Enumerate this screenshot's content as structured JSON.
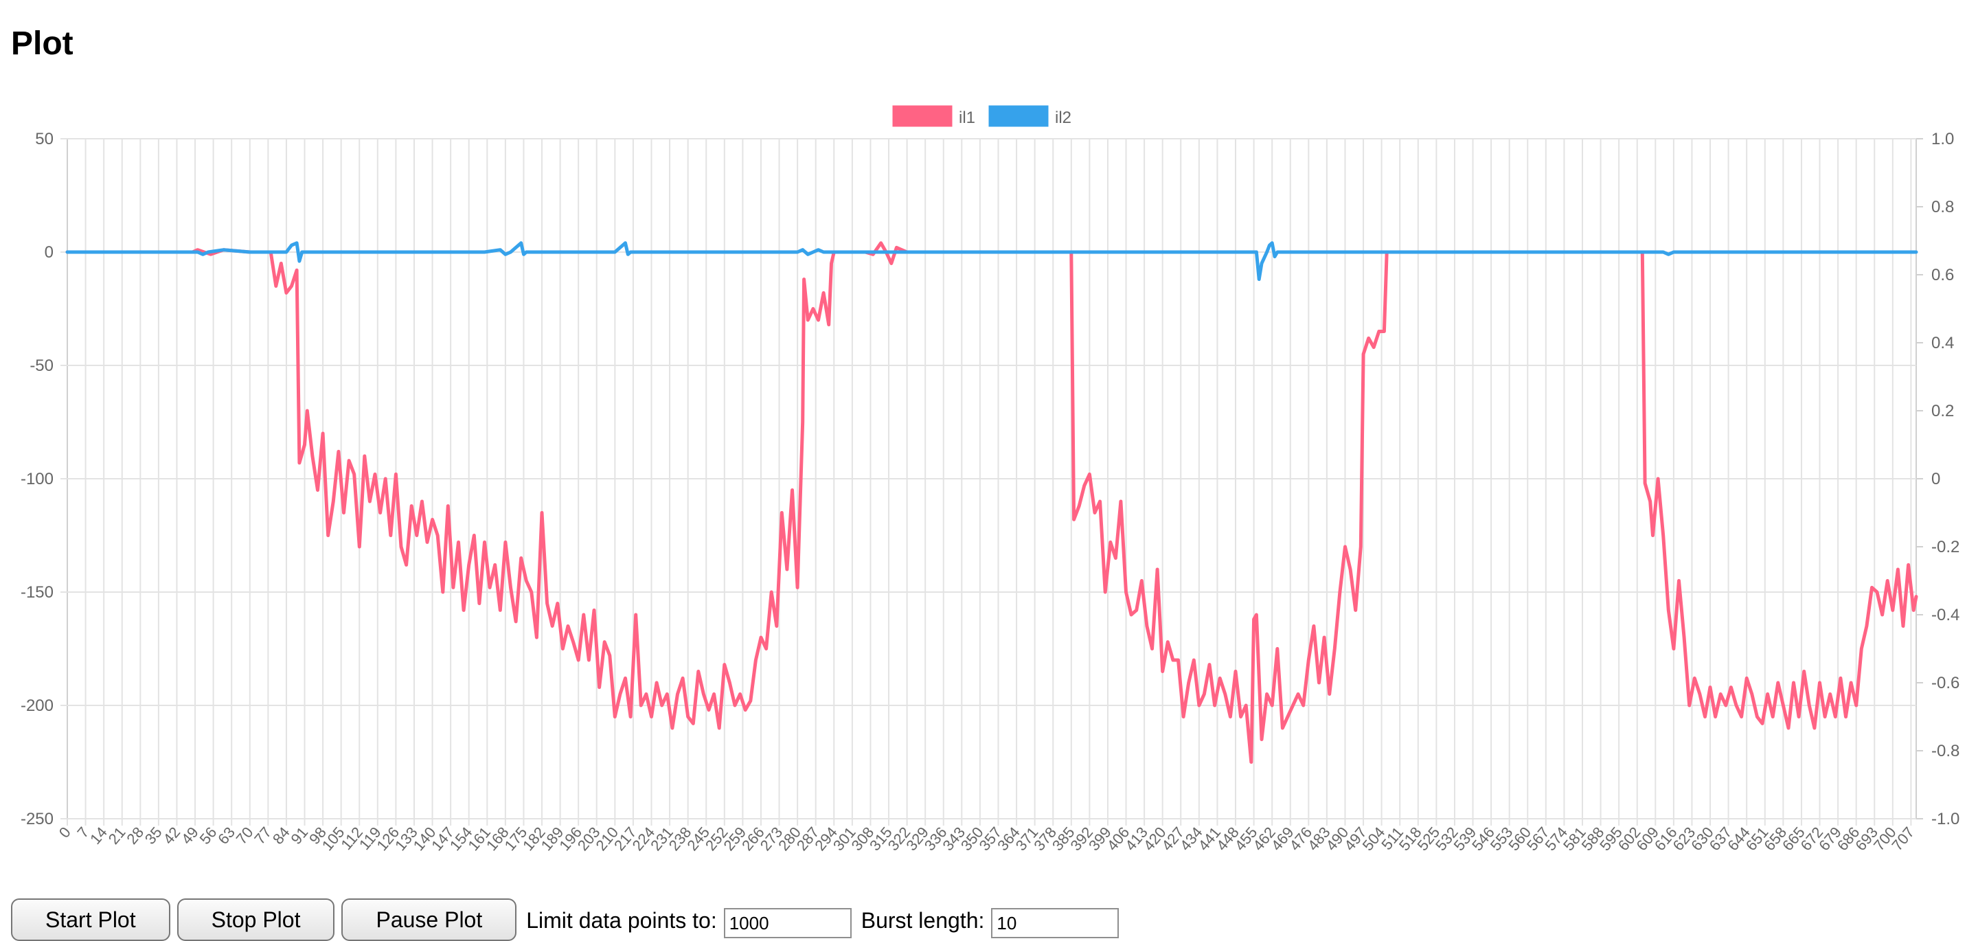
{
  "page": {
    "title": "Plot"
  },
  "controls": {
    "start_label": "Start Plot",
    "stop_label": "Stop Plot",
    "pause_label": "Pause Plot",
    "limit_label": "Limit data points to:",
    "limit_value": "1000",
    "burst_label": "Burst length:",
    "burst_value": "10"
  },
  "chart_data": {
    "type": "line",
    "x": {
      "min": 0,
      "max": 709,
      "tick_step": 7
    },
    "y_left": {
      "min": -250,
      "max": 50,
      "ticks": [
        50,
        0,
        -50,
        -100,
        -150,
        -200,
        -250
      ]
    },
    "y_right": {
      "min": -1.0,
      "max": 1.0,
      "ticks": [
        "1.0",
        "0.8",
        "0.6",
        "0.4",
        "0.2",
        "0",
        "-0.2",
        "-0.4",
        "-0.6",
        "-0.8",
        "-1.0"
      ]
    },
    "grid": true,
    "legend_position": "top-center",
    "series": [
      {
        "name": "il1",
        "color": "#ff6384",
        "points": [
          [
            0,
            0
          ],
          [
            48,
            0
          ],
          [
            50,
            1
          ],
          [
            55,
            -1
          ],
          [
            60,
            1
          ],
          [
            70,
            0
          ],
          [
            78,
            0
          ],
          [
            80,
            -15
          ],
          [
            82,
            -5
          ],
          [
            84,
            -18
          ],
          [
            86,
            -15
          ],
          [
            88,
            -8
          ],
          [
            89,
            -93
          ],
          [
            91,
            -85
          ],
          [
            92,
            -70
          ],
          [
            94,
            -90
          ],
          [
            96,
            -105
          ],
          [
            98,
            -80
          ],
          [
            100,
            -125
          ],
          [
            102,
            -110
          ],
          [
            104,
            -88
          ],
          [
            106,
            -115
          ],
          [
            108,
            -92
          ],
          [
            110,
            -98
          ],
          [
            112,
            -130
          ],
          [
            114,
            -90
          ],
          [
            116,
            -110
          ],
          [
            118,
            -98
          ],
          [
            120,
            -115
          ],
          [
            122,
            -100
          ],
          [
            124,
            -125
          ],
          [
            126,
            -98
          ],
          [
            128,
            -130
          ],
          [
            130,
            -138
          ],
          [
            132,
            -112
          ],
          [
            134,
            -125
          ],
          [
            136,
            -110
          ],
          [
            138,
            -128
          ],
          [
            140,
            -118
          ],
          [
            142,
            -125
          ],
          [
            144,
            -150
          ],
          [
            146,
            -112
          ],
          [
            148,
            -148
          ],
          [
            150,
            -128
          ],
          [
            152,
            -158
          ],
          [
            154,
            -138
          ],
          [
            156,
            -125
          ],
          [
            158,
            -155
          ],
          [
            160,
            -128
          ],
          [
            162,
            -148
          ],
          [
            164,
            -138
          ],
          [
            166,
            -158
          ],
          [
            168,
            -128
          ],
          [
            170,
            -148
          ],
          [
            172,
            -163
          ],
          [
            174,
            -135
          ],
          [
            176,
            -145
          ],
          [
            178,
            -150
          ],
          [
            180,
            -170
          ],
          [
            182,
            -115
          ],
          [
            184,
            -155
          ],
          [
            186,
            -165
          ],
          [
            188,
            -155
          ],
          [
            190,
            -175
          ],
          [
            192,
            -165
          ],
          [
            194,
            -172
          ],
          [
            196,
            -180
          ],
          [
            198,
            -160
          ],
          [
            200,
            -180
          ],
          [
            202,
            -158
          ],
          [
            204,
            -192
          ],
          [
            206,
            -172
          ],
          [
            208,
            -178
          ],
          [
            210,
            -205
          ],
          [
            212,
            -195
          ],
          [
            214,
            -188
          ],
          [
            216,
            -205
          ],
          [
            218,
            -160
          ],
          [
            220,
            -200
          ],
          [
            222,
            -195
          ],
          [
            224,
            -205
          ],
          [
            226,
            -190
          ],
          [
            228,
            -200
          ],
          [
            230,
            -195
          ],
          [
            232,
            -210
          ],
          [
            234,
            -195
          ],
          [
            236,
            -188
          ],
          [
            238,
            -205
          ],
          [
            240,
            -208
          ],
          [
            242,
            -185
          ],
          [
            244,
            -195
          ],
          [
            246,
            -202
          ],
          [
            248,
            -195
          ],
          [
            250,
            -210
          ],
          [
            252,
            -182
          ],
          [
            254,
            -190
          ],
          [
            256,
            -200
          ],
          [
            258,
            -195
          ],
          [
            260,
            -202
          ],
          [
            262,
            -198
          ],
          [
            264,
            -180
          ],
          [
            266,
            -170
          ],
          [
            268,
            -175
          ],
          [
            270,
            -150
          ],
          [
            272,
            -165
          ],
          [
            274,
            -115
          ],
          [
            276,
            -140
          ],
          [
            278,
            -105
          ],
          [
            280,
            -148
          ],
          [
            282,
            -75
          ],
          [
            282.5,
            -12
          ],
          [
            284,
            -30
          ],
          [
            286,
            -25
          ],
          [
            288,
            -30
          ],
          [
            290,
            -18
          ],
          [
            292,
            -32
          ],
          [
            293,
            -5
          ],
          [
            294,
            0
          ],
          [
            306,
            0
          ],
          [
            309,
            -1
          ],
          [
            312,
            4
          ],
          [
            314,
            0
          ],
          [
            316,
            -5
          ],
          [
            318,
            2
          ],
          [
            322,
            0
          ],
          [
            360,
            0
          ],
          [
            385,
            0
          ],
          [
            386,
            -118
          ],
          [
            388,
            -112
          ],
          [
            390,
            -103
          ],
          [
            392,
            -98
          ],
          [
            394,
            -115
          ],
          [
            396,
            -110
          ],
          [
            398,
            -150
          ],
          [
            400,
            -128
          ],
          [
            402,
            -135
          ],
          [
            404,
            -110
          ],
          [
            406,
            -150
          ],
          [
            408,
            -160
          ],
          [
            410,
            -158
          ],
          [
            412,
            -145
          ],
          [
            414,
            -165
          ],
          [
            416,
            -175
          ],
          [
            418,
            -140
          ],
          [
            420,
            -185
          ],
          [
            422,
            -172
          ],
          [
            424,
            -180
          ],
          [
            426,
            -180
          ],
          [
            428,
            -205
          ],
          [
            430,
            -190
          ],
          [
            432,
            -180
          ],
          [
            434,
            -200
          ],
          [
            436,
            -195
          ],
          [
            438,
            -182
          ],
          [
            440,
            -200
          ],
          [
            442,
            -188
          ],
          [
            444,
            -195
          ],
          [
            446,
            -205
          ],
          [
            448,
            -185
          ],
          [
            450,
            -205
          ],
          [
            452,
            -200
          ],
          [
            454,
            -225
          ],
          [
            455,
            -162
          ],
          [
            456,
            -160
          ],
          [
            458,
            -215
          ],
          [
            460,
            -195
          ],
          [
            462,
            -200
          ],
          [
            464,
            -175
          ],
          [
            466,
            -210
          ],
          [
            468,
            -205
          ],
          [
            470,
            -200
          ],
          [
            472,
            -195
          ],
          [
            474,
            -200
          ],
          [
            476,
            -180
          ],
          [
            478,
            -165
          ],
          [
            480,
            -190
          ],
          [
            482,
            -170
          ],
          [
            484,
            -195
          ],
          [
            486,
            -175
          ],
          [
            488,
            -150
          ],
          [
            490,
            -130
          ],
          [
            492,
            -140
          ],
          [
            494,
            -158
          ],
          [
            496,
            -130
          ],
          [
            497,
            -45
          ],
          [
            499,
            -38
          ],
          [
            501,
            -42
          ],
          [
            503,
            -35
          ],
          [
            505,
            -35
          ],
          [
            506,
            0
          ],
          [
            540,
            0
          ],
          [
            590,
            0
          ],
          [
            604,
            0
          ],
          [
            605,
            -102
          ],
          [
            607,
            -110
          ],
          [
            608,
            -125
          ],
          [
            610,
            -100
          ],
          [
            612,
            -125
          ],
          [
            614,
            -158
          ],
          [
            616,
            -175
          ],
          [
            618,
            -145
          ],
          [
            620,
            -170
          ],
          [
            622,
            -200
          ],
          [
            624,
            -188
          ],
          [
            626,
            -195
          ],
          [
            628,
            -205
          ],
          [
            630,
            -192
          ],
          [
            632,
            -205
          ],
          [
            634,
            -195
          ],
          [
            636,
            -200
          ],
          [
            638,
            -192
          ],
          [
            640,
            -200
          ],
          [
            642,
            -205
          ],
          [
            644,
            -188
          ],
          [
            646,
            -195
          ],
          [
            648,
            -205
          ],
          [
            650,
            -208
          ],
          [
            652,
            -195
          ],
          [
            654,
            -205
          ],
          [
            656,
            -190
          ],
          [
            658,
            -200
          ],
          [
            660,
            -210
          ],
          [
            662,
            -190
          ],
          [
            664,
            -205
          ],
          [
            666,
            -185
          ],
          [
            668,
            -200
          ],
          [
            670,
            -210
          ],
          [
            672,
            -190
          ],
          [
            674,
            -205
          ],
          [
            676,
            -195
          ],
          [
            678,
            -205
          ],
          [
            680,
            -188
          ],
          [
            682,
            -205
          ],
          [
            684,
            -190
          ],
          [
            686,
            -200
          ],
          [
            688,
            -175
          ],
          [
            690,
            -165
          ],
          [
            692,
            -148
          ],
          [
            694,
            -150
          ],
          [
            696,
            -160
          ],
          [
            698,
            -145
          ],
          [
            700,
            -158
          ],
          [
            702,
            -140
          ],
          [
            704,
            -165
          ],
          [
            706,
            -138
          ],
          [
            708,
            -158
          ],
          [
            709,
            -152
          ]
        ]
      },
      {
        "name": "il2",
        "color": "#36a2eb",
        "points": [
          [
            0,
            0
          ],
          [
            50,
            0
          ],
          [
            52,
            -1
          ],
          [
            54,
            0
          ],
          [
            60,
            1
          ],
          [
            70,
            0
          ],
          [
            84,
            0
          ],
          [
            86,
            3
          ],
          [
            88,
            4
          ],
          [
            89,
            -4
          ],
          [
            90,
            0
          ],
          [
            120,
            0
          ],
          [
            160,
            0
          ],
          [
            166,
            1
          ],
          [
            168,
            -1
          ],
          [
            170,
            0
          ],
          [
            172,
            2
          ],
          [
            174,
            4
          ],
          [
            175,
            -1
          ],
          [
            176,
            0
          ],
          [
            210,
            0
          ],
          [
            212,
            2
          ],
          [
            214,
            4
          ],
          [
            215,
            -1
          ],
          [
            216,
            0
          ],
          [
            280,
            0
          ],
          [
            282,
            1
          ],
          [
            284,
            -1
          ],
          [
            286,
            0
          ],
          [
            288,
            1
          ],
          [
            290,
            0
          ],
          [
            360,
            0
          ],
          [
            450,
            0
          ],
          [
            456,
            0
          ],
          [
            457,
            -12
          ],
          [
            458,
            -5
          ],
          [
            460,
            0
          ],
          [
            461,
            3
          ],
          [
            462,
            4
          ],
          [
            463,
            -2
          ],
          [
            464,
            0
          ],
          [
            500,
            0
          ],
          [
            520,
            0
          ],
          [
            600,
            0
          ],
          [
            612,
            0
          ],
          [
            614,
            -1
          ],
          [
            616,
            0
          ],
          [
            650,
            0
          ],
          [
            700,
            0
          ],
          [
            709,
            0
          ]
        ]
      }
    ]
  }
}
